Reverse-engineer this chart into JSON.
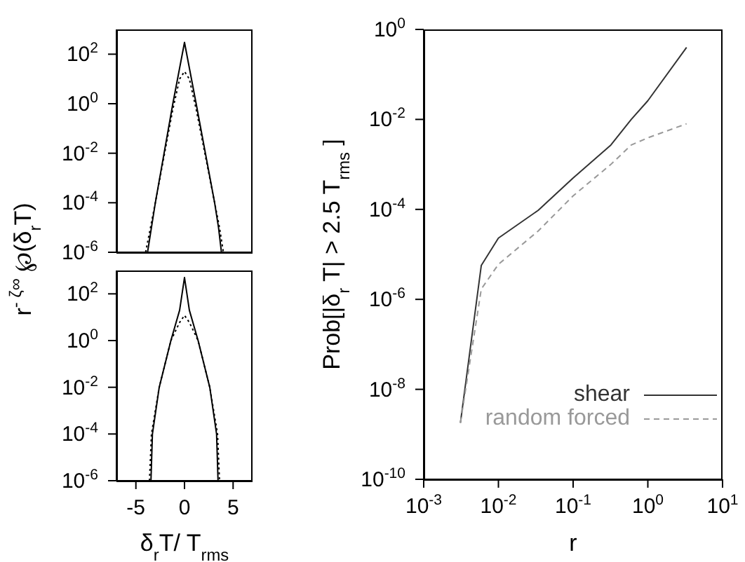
{
  "chart_data": [
    {
      "type": "line",
      "ylabel": "r$^{- ζ∞}$ ℘(δ$_{r}$T)",
      "log": "y",
      "tick_labels": "y",
      "grid": false,
      "xlim": [
        -7,
        7
      ],
      "xticks": [
        -5,
        0,
        5
      ],
      "ylim": [
        1e-06,
        1000
      ],
      "yticks": [
        {
          "value": 1e-06,
          "label": "10$^{-6}$"
        },
        {
          "value": 0.0001,
          "label": "10$^{-4}$"
        },
        {
          "value": 0.01,
          "label": "10$^{-2}$"
        },
        {
          "value": 1,
          "label": "10$^{0}$"
        },
        {
          "value": 100,
          "label": "10$^{2}$"
        }
      ],
      "series": [
        {
          "color": "#000000",
          "line_style": "solid",
          "x": [
            -3.8,
            -3.4,
            -3.0,
            -1.2,
            0,
            1.2,
            3.1,
            3.5,
            3.8
          ],
          "values": [
            1e-06,
            1e-05,
            0.0001,
            1,
            300,
            1,
            0.0001,
            1e-05,
            1e-06
          ]
        },
        {
          "color": "#000000",
          "line_style": "dotted",
          "x": [
            -4.0,
            -3.5,
            -3.0,
            -1.2,
            -0.5,
            0,
            0.5,
            1.2,
            3.1,
            3.6,
            4.0
          ],
          "values": [
            1e-06,
            1e-05,
            0.0001,
            0.6,
            10,
            20,
            10,
            0.6,
            0.0001,
            1e-05,
            1e-06
          ]
        }
      ]
    },
    {
      "type": "line",
      "xlabel": "δ$_{r}$T/ T$_{rms}$",
      "log": "y",
      "grid": false,
      "xlim": [
        -7,
        7
      ],
      "xticks": [
        -5,
        0,
        5
      ],
      "ylim": [
        1e-06,
        1000
      ],
      "yticks": [
        {
          "value": 1e-06,
          "label": "10$^{-6}$"
        },
        {
          "value": 0.0001,
          "label": "10$^{-4}$"
        },
        {
          "value": 0.01,
          "label": "10$^{-2}$"
        },
        {
          "value": 1,
          "label": "10$^{0}$"
        },
        {
          "value": 100,
          "label": "10$^{2}$"
        }
      ],
      "series": [
        {
          "color": "#000000",
          "line_style": "solid",
          "x": [
            -3.45,
            -3.3,
            -2.6,
            -1.4,
            -0.5,
            0,
            0.5,
            1.4,
            2.6,
            3.3,
            3.45
          ],
          "values": [
            1e-06,
            0.0001,
            0.01,
            1,
            20,
            500,
            20,
            1,
            0.01,
            0.0001,
            1e-06
          ]
        },
        {
          "color": "#000000",
          "line_style": "dotted",
          "x": [
            -3.6,
            -3.4,
            -2.6,
            -1.4,
            -0.5,
            0,
            0.5,
            1.4,
            2.6,
            3.4,
            3.6
          ],
          "values": [
            1e-06,
            0.0001,
            0.01,
            1,
            6,
            12,
            6,
            1,
            0.01,
            0.0001,
            1e-06
          ]
        }
      ]
    },
    {
      "type": "line",
      "xlabel": "r",
      "ylabel": "Prob[|δ$_{r}$ T| > 2.5 T$_{rms}$ ]",
      "log": "xy",
      "grid": false,
      "legend": "bottom right",
      "xlim": [
        0.001,
        10
      ],
      "xticks": [
        {
          "value": 0.001,
          "label": "10$^{-3}$"
        },
        {
          "value": 0.01,
          "label": "10$^{-2}$"
        },
        {
          "value": 0.1,
          "label": "10$^{-1}$"
        },
        {
          "value": 1,
          "label": "10$^{0}$"
        },
        {
          "value": 10,
          "label": "10$^{1}$"
        }
      ],
      "ylim": [
        1e-10,
        1
      ],
      "yticks": [
        {
          "value": 1e-10,
          "label": "10$^{-10}$"
        },
        {
          "value": 1e-08,
          "label": "10$^{-8}$"
        },
        {
          "value": 1e-06,
          "label": "10$^{-6}$"
        },
        {
          "value": 0.0001,
          "label": "10$^{-4}$"
        },
        {
          "value": 0.01,
          "label": "10$^{-2}$"
        },
        {
          "value": 1,
          "label": "10$^{0}$"
        }
      ],
      "series": [
        {
          "name": "shear",
          "color": "#333333",
          "line_style": "solid",
          "x": [
            0.0031,
            0.0059,
            0.01,
            0.034,
            0.1,
            0.32,
            0.6,
            1,
            3.3
          ],
          "values": [
            1.8e-09,
            5.7e-06,
            2.3e-05,
            9.5e-05,
            0.0005,
            0.0027,
            0.01,
            0.026,
            0.4
          ]
        },
        {
          "name": "random forced",
          "color": "#999999",
          "line_style": "dashed",
          "x": [
            0.0031,
            0.0059,
            0.01,
            0.034,
            0.1,
            0.32,
            0.6,
            1,
            3.3
          ],
          "values": [
            1.8e-09,
            1.7e-06,
            6e-06,
            3.3e-05,
            0.0002,
            0.001,
            0.0027,
            0.0039,
            0.008
          ]
        }
      ]
    }
  ]
}
